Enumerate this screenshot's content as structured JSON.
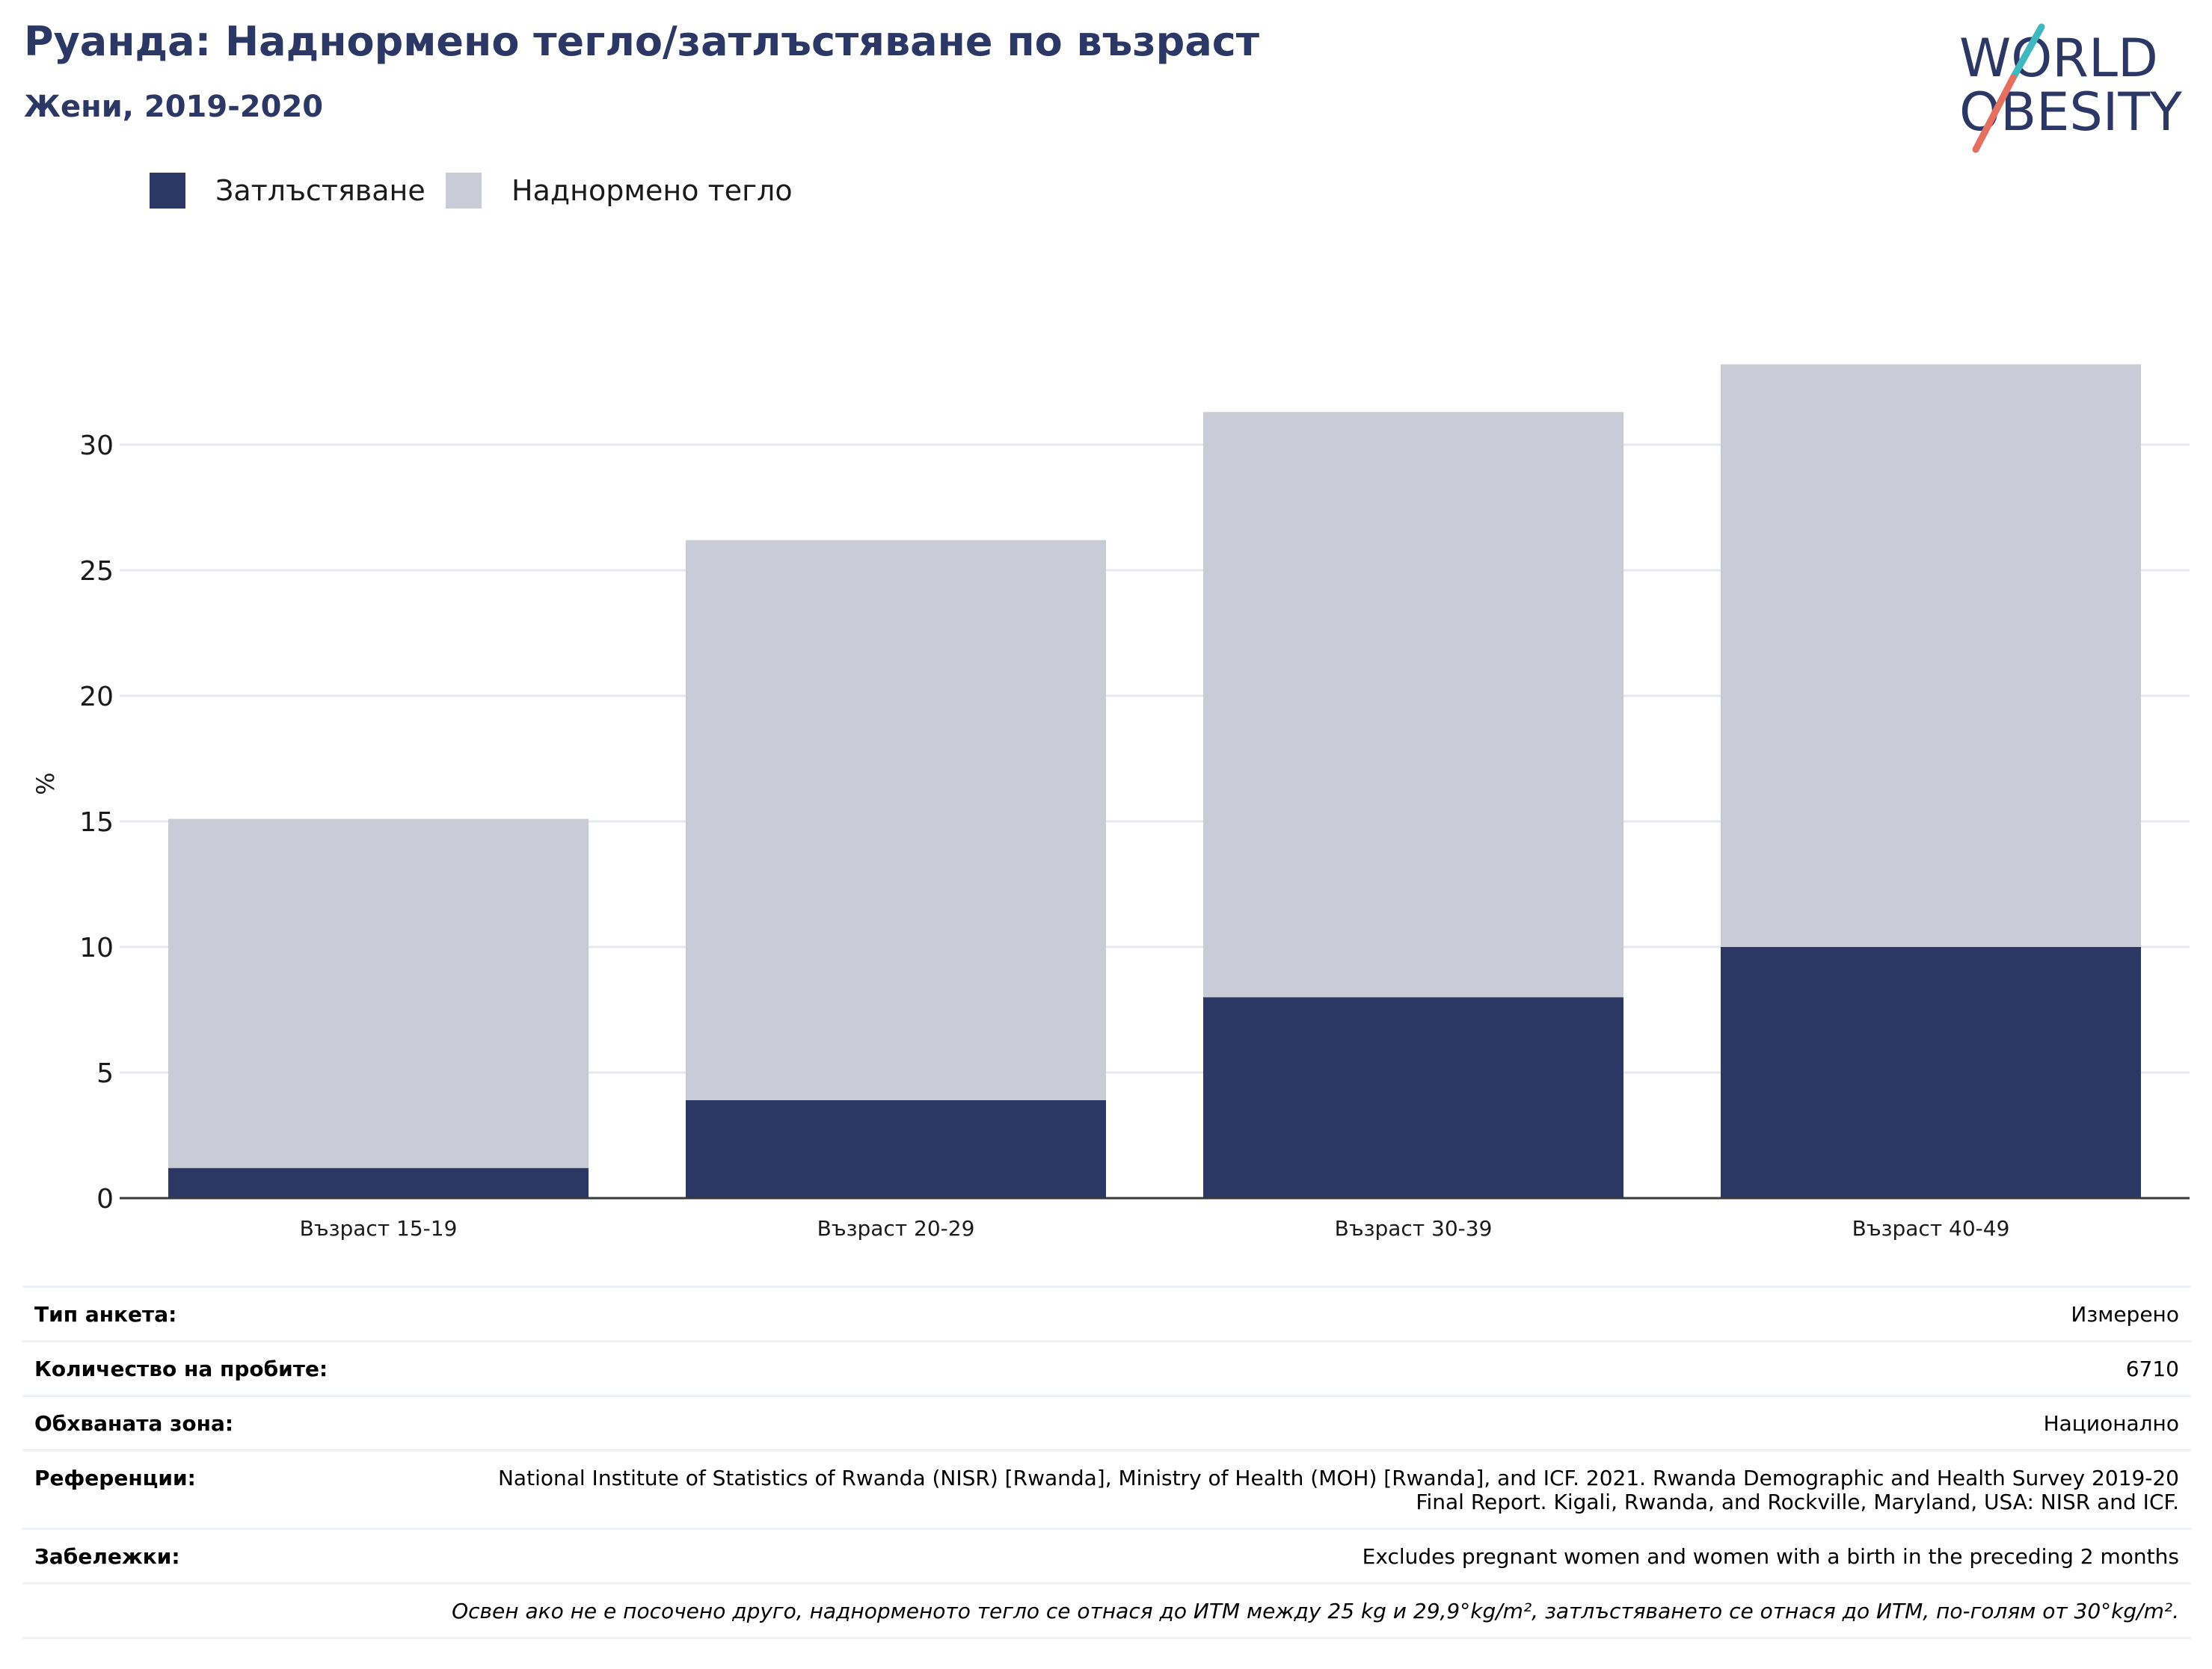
{
  "header": {
    "title": "Руанда: Наднормено тегло/затлъстяване по възраст",
    "subtitle": "Жени, 2019-2020"
  },
  "logo": {
    "line1": "WORLD",
    "line2": "OBESITY"
  },
  "colors": {
    "obesity": "#2b3765",
    "overweight": "#c9cbd7",
    "title": "#2b3765",
    "logo_teal": "#3fb8c0",
    "logo_coral": "#e5705f"
  },
  "legend": {
    "obesity_label": "Затлъстяване",
    "overweight_label": "Наднормено тегло"
  },
  "chart_data": {
    "type": "bar",
    "stacked": true,
    "title": "",
    "xlabel": "",
    "ylabel": "%",
    "ylim": [
      0,
      34
    ],
    "yticks": [
      0,
      5,
      10,
      15,
      20,
      25,
      30
    ],
    "grid": true,
    "legend_position": "top-left",
    "categories": [
      "Възраст 15-19",
      "Възраст 20-29",
      "Възраст 30-39",
      "Възраст 40-49"
    ],
    "series": [
      {
        "name": "Затлъстяване",
        "values": [
          1.2,
          3.9,
          8.0,
          10.0
        ]
      },
      {
        "name": "Наднормено тегло",
        "values": [
          13.9,
          22.3,
          23.3,
          23.2
        ]
      }
    ]
  },
  "info": {
    "survey_type_label": "Тип анкета:",
    "survey_type_value": "Измерено",
    "sample_size_label": "Количество на пробите:",
    "sample_size_value": "6710",
    "area_label": "Обхваната зона:",
    "area_value": "Национално",
    "references_label": "Референции:",
    "references_value": "National Institute of Statistics of Rwanda (NISR) [Rwanda], Ministry of Health (MOH) [Rwanda], and ICF. 2021. Rwanda Demographic and Health Survey 2019-20 Final Report. Kigali, Rwanda, and Rockville, Maryland, USA: NISR and ICF.",
    "notes_label": "Забележки:",
    "notes_value": "Excludes pregnant women and women with a birth in the preceding 2 months",
    "definition_note": "Освен ако не е посочено друго, наднорменото тегло се отнася до ИТМ между 25 kg и 29,9°kg/m², затлъстяването се отнася до ИТМ, по-голям от 30°kg/m²."
  }
}
